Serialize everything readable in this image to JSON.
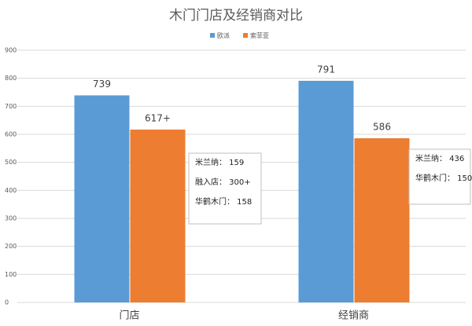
{
  "chart_data": {
    "type": "bar",
    "title": "木门门店及经销商对比",
    "categories": [
      "门店",
      "经销商"
    ],
    "series": [
      {
        "name": "欧派",
        "color": "#5b9bd5",
        "values": [
          739,
          791
        ],
        "value_labels": [
          "739",
          "791"
        ]
      },
      {
        "name": "索菲亚",
        "color": "#ed7d31",
        "values": [
          617,
          586
        ],
        "value_labels": [
          "617+",
          "586"
        ]
      }
    ],
    "ylim": [
      0,
      900
    ],
    "yticks": [
      0,
      100,
      200,
      300,
      400,
      500,
      600,
      700,
      800,
      900
    ],
    "grid": true,
    "legend": "top",
    "annotations": [
      {
        "lines": [
          "米兰纳： 159",
          "融入店： 300+",
          "华鹤木门： 158"
        ]
      },
      {
        "lines": [
          "米兰纳： 436",
          "华鹤木门： 150"
        ]
      }
    ]
  }
}
